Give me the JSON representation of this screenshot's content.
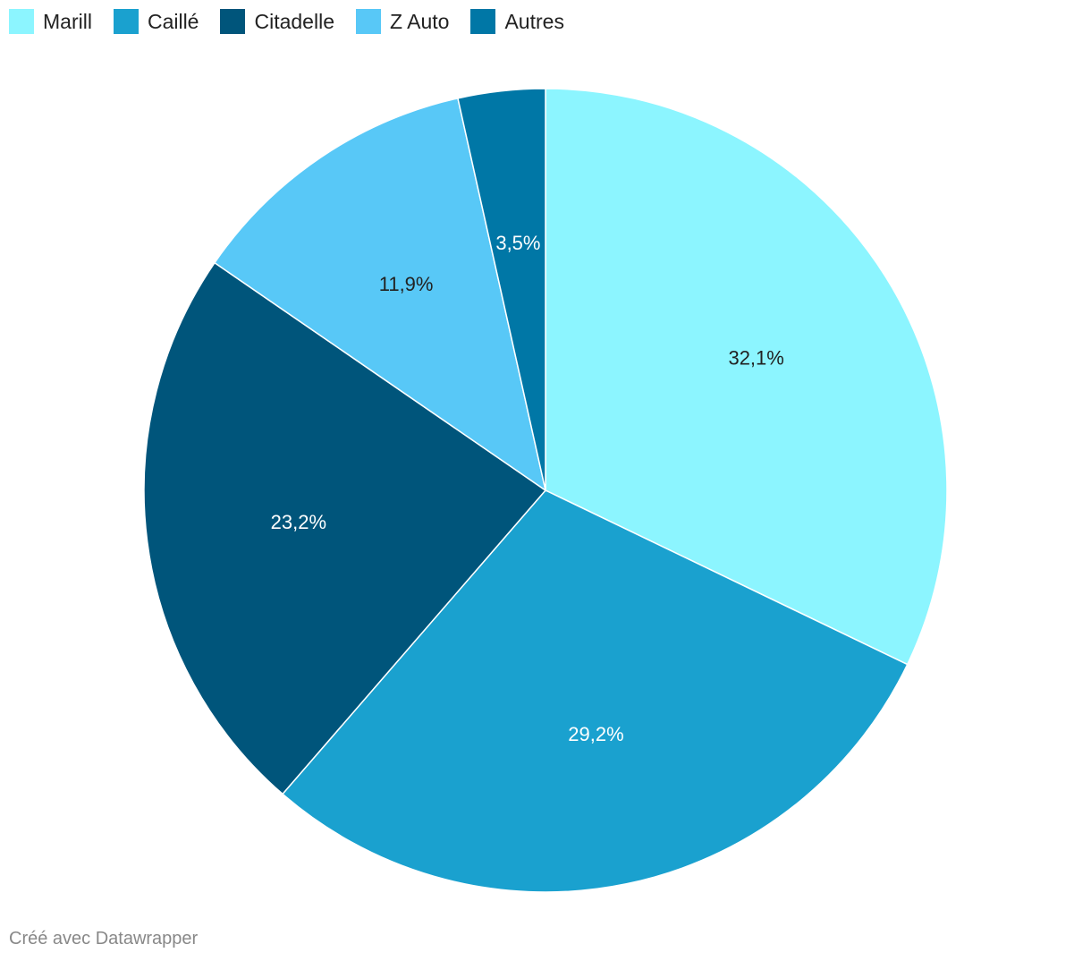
{
  "legend": {
    "items": [
      {
        "label": "Marill",
        "color": "#8cf5ff"
      },
      {
        "label": "Caillé",
        "color": "#1aa1cf"
      },
      {
        "label": "Citadelle",
        "color": "#00557b"
      },
      {
        "label": "Z Auto",
        "color": "#58c8f7"
      },
      {
        "label": "Autres",
        "color": "#0077a6"
      }
    ]
  },
  "chart_data": {
    "type": "pie",
    "title": "",
    "legend_position": "top-left",
    "slices": [
      {
        "name": "Marill",
        "value": 32.1,
        "label": "32,1%",
        "color": "#8cf5ff",
        "label_color": "#222222"
      },
      {
        "name": "Caillé",
        "value": 29.2,
        "label": "29,2%",
        "color": "#1aa1cf",
        "label_color": "#ffffff"
      },
      {
        "name": "Citadelle",
        "value": 23.2,
        "label": "23,2%",
        "color": "#00557b",
        "label_color": "#ffffff"
      },
      {
        "name": "Z Auto",
        "value": 11.9,
        "label": "11,9%",
        "color": "#58c8f7",
        "label_color": "#222222"
      },
      {
        "name": "Autres",
        "value": 3.5,
        "label": "3,5%",
        "color": "#0077a6",
        "label_color": "#ffffff"
      }
    ]
  },
  "footer": {
    "credit": "Créé avec Datawrapper"
  }
}
